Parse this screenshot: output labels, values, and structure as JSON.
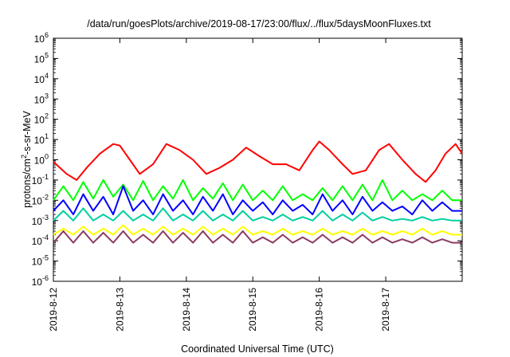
{
  "chart_data": {
    "type": "line",
    "title": "/data/run/goesPlots/archive/2019-08-17/23:00/flux/../flux/5daysMoonFluxes.txt",
    "xlabel": "Coordinated Universal Time (UTC)",
    "ylabel": "protons/cm²-s-sr-MeV",
    "ylabel_parts": {
      "pre": "protons/cm",
      "sup": "2",
      "post": "-s-sr-MeV"
    },
    "y_scale": "log",
    "ylim_exponent": [
      -6,
      6
    ],
    "y_ticks": [
      {
        "base": "10",
        "exp": "-6",
        "e": -6
      },
      {
        "base": "10",
        "exp": "-5",
        "e": -5
      },
      {
        "base": "10",
        "exp": "-4",
        "e": -4
      },
      {
        "base": "10",
        "exp": "-3",
        "e": -3
      },
      {
        "base": "10",
        "exp": "-2",
        "e": -2
      },
      {
        "base": "10",
        "exp": "-1",
        "e": -1
      },
      {
        "base": "10",
        "exp": "0",
        "e": 0
      },
      {
        "base": "10",
        "exp": "1",
        "e": 1
      },
      {
        "base": "10",
        "exp": "2",
        "e": 2
      },
      {
        "base": "10",
        "exp": "3",
        "e": 3
      },
      {
        "base": "10",
        "exp": "4",
        "e": 4
      },
      {
        "base": "10",
        "exp": "5",
        "e": 5
      },
      {
        "base": "10",
        "exp": "6",
        "e": 6
      }
    ],
    "x_start": "2019-08-12",
    "x_range_days": [
      0,
      6.15
    ],
    "x_ticks": [
      {
        "label": "2019-8-12",
        "day": 0
      },
      {
        "label": "2019-8-13",
        "day": 1
      },
      {
        "label": "2019-8-14",
        "day": 2
      },
      {
        "label": "2019-8-15",
        "day": 3
      },
      {
        "label": "2019-8-16",
        "day": 4
      },
      {
        "label": "2019-8-17",
        "day": 5
      }
    ],
    "grid": false,
    "legend": "none",
    "series": [
      {
        "color": "#ff0000",
        "x": [
          0.0,
          0.2,
          0.35,
          0.5,
          0.7,
          0.9,
          1.0,
          1.15,
          1.3,
          1.5,
          1.7,
          1.9,
          2.1,
          2.3,
          2.5,
          2.7,
          2.9,
          3.1,
          3.3,
          3.5,
          3.7,
          3.9,
          4.0,
          4.15,
          4.35,
          4.5,
          4.7,
          4.9,
          5.05,
          5.25,
          5.45,
          5.6,
          5.75,
          5.9,
          6.05,
          6.15
        ],
        "y": [
          0.8,
          0.2,
          0.1,
          0.4,
          2,
          6,
          5,
          1,
          0.2,
          0.6,
          6,
          3,
          1,
          0.2,
          0.4,
          1,
          4,
          1.5,
          0.6,
          0.6,
          0.3,
          3,
          8,
          3,
          0.6,
          0.2,
          0.3,
          3,
          6,
          1,
          0.2,
          0.08,
          0.3,
          2,
          6,
          2
        ]
      },
      {
        "color": "#00ff00",
        "x": [
          0.0,
          0.15,
          0.3,
          0.45,
          0.6,
          0.75,
          0.9,
          1.05,
          1.2,
          1.35,
          1.5,
          1.65,
          1.8,
          1.95,
          2.1,
          2.25,
          2.4,
          2.55,
          2.7,
          2.85,
          3.0,
          3.15,
          3.3,
          3.45,
          3.6,
          3.75,
          3.9,
          4.05,
          4.2,
          4.35,
          4.5,
          4.65,
          4.8,
          4.95,
          5.1,
          5.25,
          5.4,
          5.55,
          5.7,
          5.85,
          6.0,
          6.15
        ],
        "y": [
          0.01,
          0.05,
          0.01,
          0.08,
          0.012,
          0.1,
          0.015,
          0.06,
          0.01,
          0.09,
          0.01,
          0.05,
          0.012,
          0.1,
          0.01,
          0.04,
          0.012,
          0.07,
          0.01,
          0.06,
          0.01,
          0.03,
          0.01,
          0.05,
          0.01,
          0.02,
          0.01,
          0.04,
          0.01,
          0.05,
          0.01,
          0.06,
          0.01,
          0.1,
          0.01,
          0.03,
          0.01,
          0.02,
          0.01,
          0.03,
          0.01,
          0.01
        ]
      },
      {
        "color": "#0000ff",
        "x": [
          0.0,
          0.15,
          0.3,
          0.45,
          0.6,
          0.75,
          0.9,
          1.05,
          1.2,
          1.35,
          1.5,
          1.65,
          1.8,
          1.95,
          2.1,
          2.25,
          2.4,
          2.55,
          2.7,
          2.85,
          3.0,
          3.15,
          3.3,
          3.45,
          3.6,
          3.75,
          3.9,
          4.05,
          4.2,
          4.35,
          4.5,
          4.65,
          4.8,
          4.95,
          5.1,
          5.25,
          5.4,
          5.55,
          5.7,
          5.85,
          6.0,
          6.15
        ],
        "y": [
          0.003,
          0.01,
          0.002,
          0.02,
          0.003,
          0.015,
          0.002,
          0.05,
          0.003,
          0.01,
          0.002,
          0.02,
          0.003,
          0.01,
          0.002,
          0.015,
          0.003,
          0.02,
          0.002,
          0.01,
          0.003,
          0.008,
          0.002,
          0.01,
          0.003,
          0.006,
          0.002,
          0.02,
          0.003,
          0.01,
          0.002,
          0.015,
          0.003,
          0.008,
          0.003,
          0.005,
          0.002,
          0.01,
          0.003,
          0.008,
          0.003,
          0.003
        ]
      },
      {
        "color": "#00cfa0",
        "x": [
          0.0,
          0.15,
          0.3,
          0.45,
          0.6,
          0.75,
          0.9,
          1.05,
          1.2,
          1.35,
          1.5,
          1.65,
          1.8,
          1.95,
          2.1,
          2.25,
          2.4,
          2.55,
          2.7,
          2.85,
          3.0,
          3.15,
          3.3,
          3.45,
          3.6,
          3.75,
          3.9,
          4.05,
          4.2,
          4.35,
          4.5,
          4.65,
          4.8,
          4.95,
          5.1,
          5.25,
          5.4,
          5.55,
          5.7,
          5.85,
          6.0,
          6.15
        ],
        "y": [
          0.001,
          0.003,
          0.001,
          0.004,
          0.001,
          0.002,
          0.001,
          0.003,
          0.001,
          0.002,
          0.001,
          0.004,
          0.001,
          0.002,
          0.001,
          0.003,
          0.001,
          0.002,
          0.001,
          0.003,
          0.001,
          0.0015,
          0.001,
          0.002,
          0.001,
          0.0015,
          0.001,
          0.003,
          0.001,
          0.002,
          0.001,
          0.0025,
          0.001,
          0.0015,
          0.001,
          0.0012,
          0.001,
          0.0015,
          0.001,
          0.0012,
          0.001,
          0.001
        ]
      },
      {
        "color": "#ffff00",
        "x": [
          0.0,
          0.15,
          0.3,
          0.45,
          0.6,
          0.75,
          0.9,
          1.05,
          1.2,
          1.35,
          1.5,
          1.65,
          1.8,
          1.95,
          2.1,
          2.25,
          2.4,
          2.55,
          2.7,
          2.85,
          3.0,
          3.15,
          3.3,
          3.45,
          3.6,
          3.75,
          3.9,
          4.05,
          4.2,
          4.35,
          4.5,
          4.65,
          4.8,
          4.95,
          5.1,
          5.25,
          5.4,
          5.55,
          5.7,
          5.85,
          6.0,
          6.15
        ],
        "y": [
          0.0002,
          0.0004,
          0.0002,
          0.0005,
          0.0002,
          0.0004,
          0.0002,
          0.0006,
          0.0002,
          0.0004,
          0.0002,
          0.0005,
          0.0002,
          0.0004,
          0.0002,
          0.0005,
          0.0002,
          0.0004,
          0.0002,
          0.0005,
          0.0002,
          0.0003,
          0.0002,
          0.0004,
          0.0002,
          0.0003,
          0.0002,
          0.0004,
          0.0002,
          0.0003,
          0.0002,
          0.0004,
          0.0002,
          0.0003,
          0.0002,
          0.0003,
          0.0002,
          0.0004,
          0.0002,
          0.0003,
          0.0002,
          0.0002
        ]
      },
      {
        "color": "#8b3a62",
        "x": [
          0.0,
          0.15,
          0.3,
          0.45,
          0.6,
          0.75,
          0.9,
          1.05,
          1.2,
          1.35,
          1.5,
          1.65,
          1.8,
          1.95,
          2.1,
          2.25,
          2.4,
          2.55,
          2.7,
          2.85,
          3.0,
          3.15,
          3.3,
          3.45,
          3.6,
          3.75,
          3.9,
          4.05,
          4.2,
          4.35,
          4.5,
          4.65,
          4.8,
          4.95,
          5.1,
          5.25,
          5.4,
          5.55,
          5.7,
          5.85,
          6.0,
          6.15
        ],
        "y": [
          8e-05,
          0.0003,
          8e-05,
          0.0003,
          8e-05,
          0.00025,
          8e-05,
          0.0003,
          8e-05,
          0.0002,
          8e-05,
          0.0003,
          8e-05,
          0.00025,
          8e-05,
          0.0003,
          8e-05,
          0.0002,
          8e-05,
          0.0003,
          8e-05,
          0.00015,
          8e-05,
          0.0002,
          8e-05,
          0.00015,
          8e-05,
          0.0002,
          8e-05,
          0.00015,
          8e-05,
          0.0002,
          8e-05,
          0.00015,
          8e-05,
          0.00012,
          8e-05,
          0.00015,
          8e-05,
          0.00012,
          8e-05,
          8e-05
        ]
      }
    ]
  }
}
